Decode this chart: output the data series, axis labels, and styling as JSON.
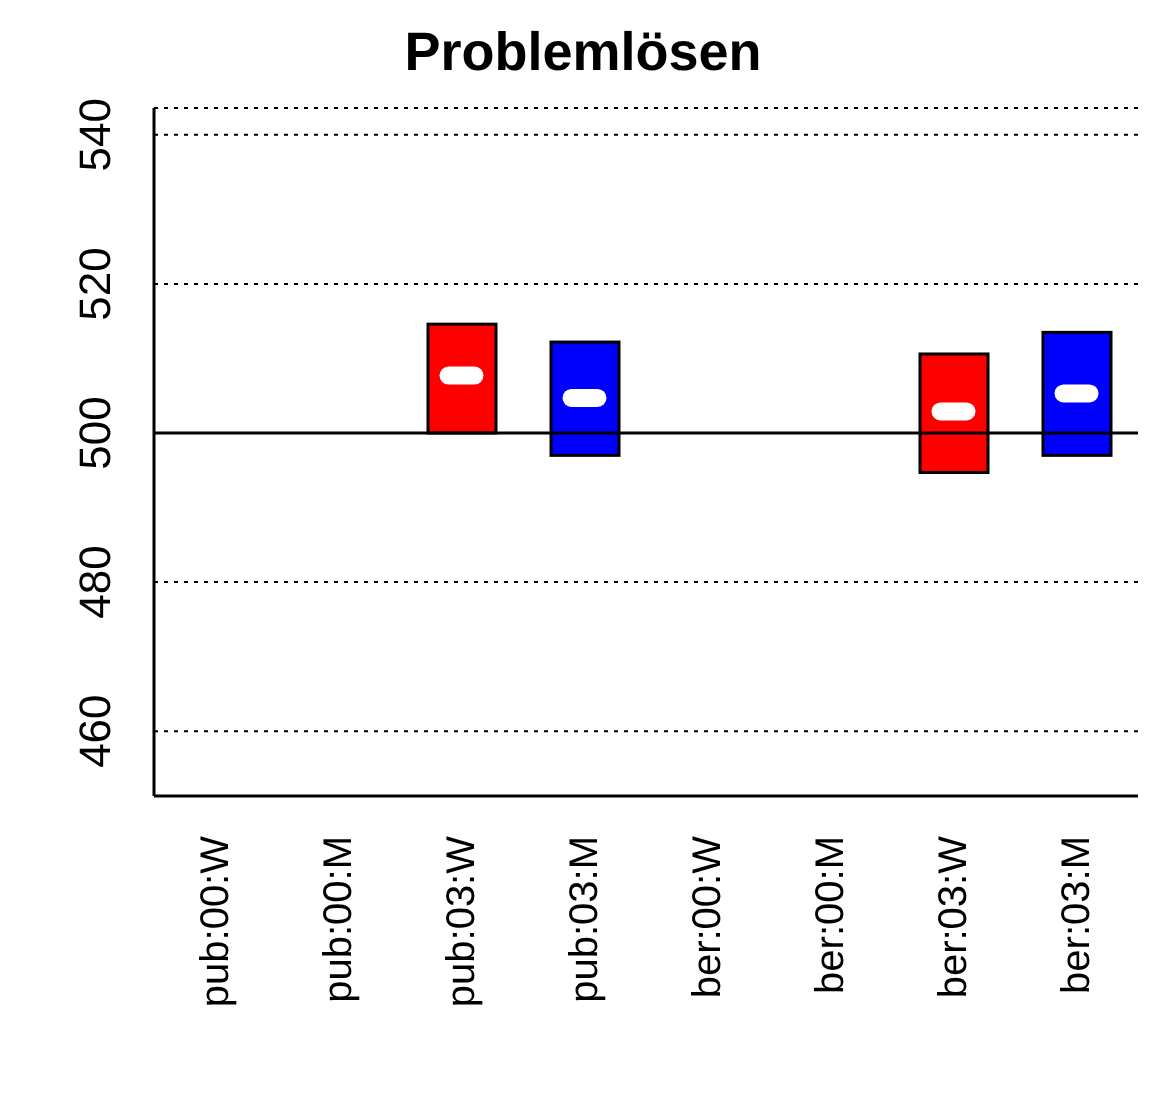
{
  "chart_data": {
    "type": "box",
    "title": "Problemlösen",
    "categories": [
      "pub:00:W",
      "pub:00:M",
      "pub:03:W",
      "pub:03:M",
      "ber:00:W",
      "ber:00:M",
      "ber:03:W",
      "ber:03:M"
    ],
    "boxes": [
      null,
      null,
      {
        "low": 500,
        "q1": 500,
        "median": 507.7,
        "q3": 514.6,
        "high": 514.6
      },
      {
        "low": 497,
        "q1": 497,
        "median": 504.7,
        "q3": 512.2,
        "high": 512.2
      },
      null,
      null,
      {
        "low": 494.7,
        "q1": 494.7,
        "median": 502.9,
        "q3": 510.6,
        "high": 510.6
      },
      {
        "low": 497,
        "q1": 497,
        "median": 505.3,
        "q3": 513.5,
        "high": 513.5
      }
    ],
    "colors": [
      "#ff0000",
      "#0000ff",
      "#ff0000",
      "#0000ff",
      "#ff0000",
      "#0000ff",
      "#ff0000",
      "#0000ff"
    ],
    "ylim": [
      451.3,
      543.6
    ],
    "yticks": [
      460,
      480,
      500,
      520,
      540
    ],
    "grid": "y",
    "ref_lines": [
      {
        "axis": "y",
        "value": 500,
        "color": "#000000",
        "line_style": "solid"
      }
    ]
  }
}
